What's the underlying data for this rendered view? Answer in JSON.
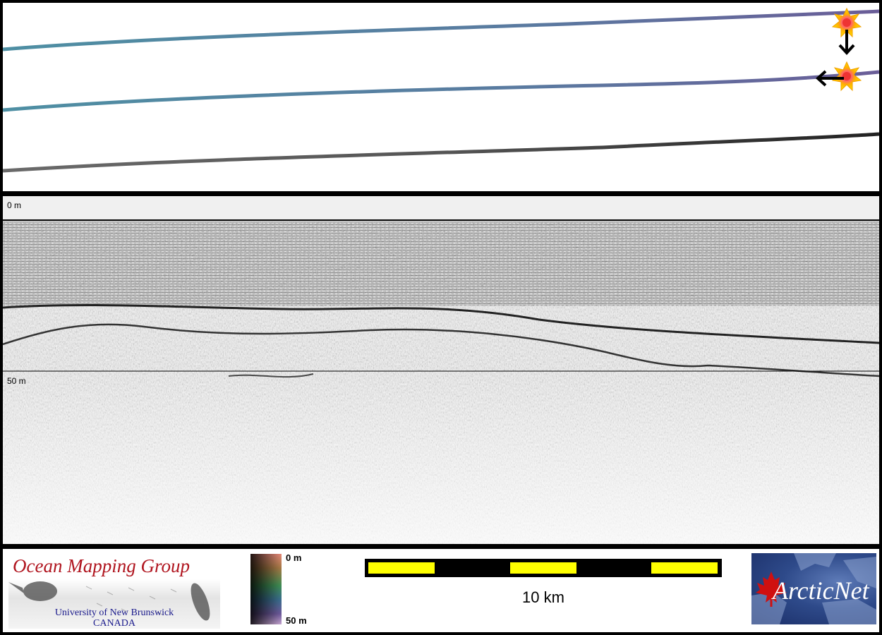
{
  "profile": {
    "depth_top_label": "0 m",
    "depth_mid_label": "50 m"
  },
  "legend": {
    "logo_omg": {
      "title": "Ocean Mapping Group",
      "line1": "University of New Brunswick",
      "line2": "CANADA"
    },
    "colorbar": {
      "top_label": "0 m",
      "bottom_label": "50 m"
    },
    "scalebar": {
      "label": "10 km",
      "colors": {
        "fill": "#ffff00",
        "bar": "#000000"
      }
    },
    "logo_arctic": {
      "text": "ArcticNet"
    }
  },
  "map": {
    "markers": [
      "sun-marker-icon",
      "sun-marker-icon"
    ],
    "arrows": [
      "arrow-down-icon",
      "arrow-left-icon"
    ]
  }
}
